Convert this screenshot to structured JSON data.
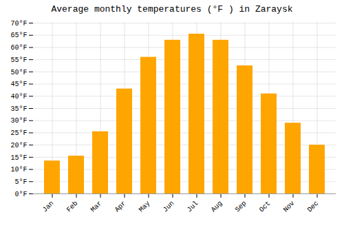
{
  "chart_data": {
    "type": "bar",
    "title": "Average monthly temperatures (°F ) in Zaraysk",
    "categories": [
      "Jan",
      "Feb",
      "Mar",
      "Apr",
      "May",
      "Jun",
      "Jul",
      "Aug",
      "Sep",
      "Oct",
      "Nov",
      "Dec"
    ],
    "values": [
      13.5,
      15.5,
      25.5,
      43.0,
      56.0,
      63.0,
      65.5,
      63.0,
      52.5,
      41.0,
      29.0,
      20.0
    ],
    "color": "#FFA500",
    "ylim": [
      0,
      70
    ],
    "yticks": [
      {
        "value": 0,
        "label": "0°F"
      },
      {
        "value": 5,
        "label": "5°F"
      },
      {
        "value": 10,
        "label": "10°F"
      },
      {
        "value": 15,
        "label": "15°F"
      },
      {
        "value": 20,
        "label": "20°F"
      },
      {
        "value": 25,
        "label": "25°F"
      },
      {
        "value": 30,
        "label": "30°F"
      },
      {
        "value": 35,
        "label": "35°F"
      },
      {
        "value": 40,
        "label": "40°F"
      },
      {
        "value": 45,
        "label": "45°F"
      },
      {
        "value": 50,
        "label": "50°F"
      },
      {
        "value": 55,
        "label": "55°F"
      },
      {
        "value": 60,
        "label": "60°F"
      },
      {
        "value": 65,
        "label": "65°F"
      },
      {
        "value": 70,
        "label": "70°F"
      }
    ],
    "grid": true
  }
}
